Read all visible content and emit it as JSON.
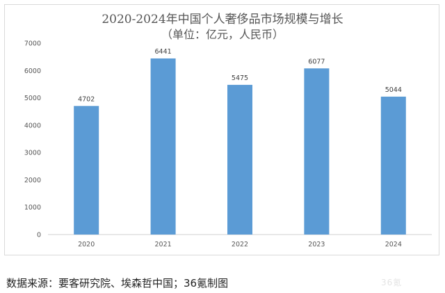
{
  "chart_data": {
    "type": "bar",
    "title": "2020-2024年中国个人奢侈品市场规模与增长",
    "subtitle": "（单位：亿元，人民币）",
    "categories": [
      "2020",
      "2021",
      "2022",
      "2023",
      "2024"
    ],
    "values": [
      4702,
      6441,
      5475,
      6077,
      5044
    ],
    "yticks": [
      0,
      1000,
      2000,
      3000,
      4000,
      5000,
      6000,
      7000
    ],
    "ylim": [
      0,
      7000
    ],
    "grid": false,
    "legend": "none",
    "bar_color": "#5b9bd5"
  },
  "source": "数据来源：要客研究院、埃森哲中国；36氪制图",
  "watermark": "36氪"
}
